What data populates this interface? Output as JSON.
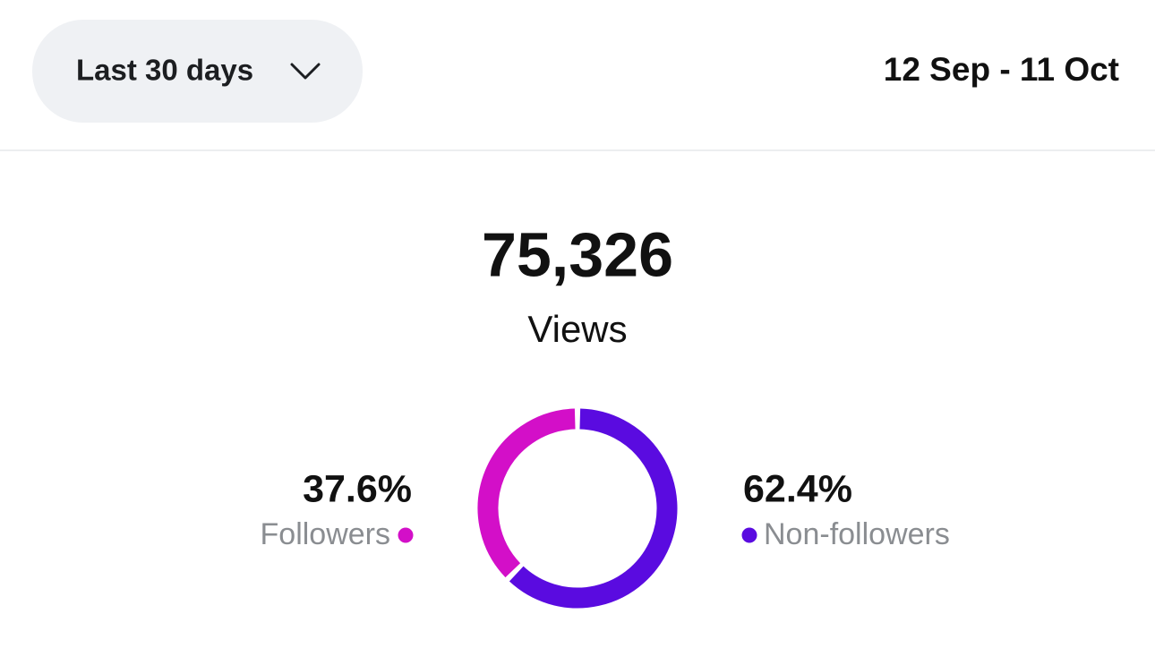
{
  "filter": {
    "label": "Last 30 days"
  },
  "date_range": "12 Sep - 11 Oct",
  "total": {
    "value": "75,326",
    "label": "Views"
  },
  "chart_data": {
    "type": "donut",
    "categories": [
      "Followers",
      "Non-followers"
    ],
    "values": [
      37.6,
      62.4
    ],
    "value_labels": [
      "37.6%",
      "62.4%"
    ],
    "colors": [
      "#d30fc8",
      "#5a0be0"
    ]
  }
}
